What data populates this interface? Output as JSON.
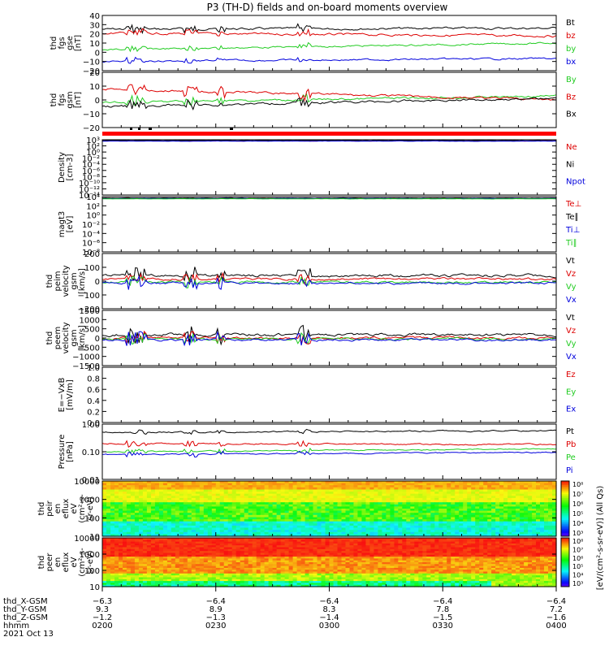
{
  "title": "P3 (TH-D) fields and on-board moments overview",
  "date_label": "2021 Oct 13",
  "colors": {
    "black": "#000000",
    "red": "#dd0000",
    "green": "#22cc22",
    "blue": "#0000dd"
  },
  "chart_data": [
    {
      "type": "line",
      "ylabel": [
        "thd",
        "fgs",
        "gse",
        "[nT]"
      ],
      "yticks": [
        "40",
        "30",
        "20",
        "10",
        "0",
        "−10",
        "−20"
      ],
      "ylim": [
        -20,
        40
      ],
      "series": [
        {
          "name": "Bt",
          "color": "#000000",
          "base": 24,
          "noise": 3
        },
        {
          "name": "bz",
          "color": "#dd0000",
          "base": 21,
          "noise": 3
        },
        {
          "name": "by",
          "color": "#22cc22",
          "base": 2,
          "noise": 2
        },
        {
          "name": "bx",
          "color": "#0000dd",
          "base": -10,
          "noise": 2
        }
      ]
    },
    {
      "type": "line",
      "ylabel": [
        "thd",
        "fgs",
        "gsm",
        "[nT]"
      ],
      "yticks": [
        "20",
        "10",
        "0",
        "−10",
        "−20"
      ],
      "ylim": [
        -25,
        25
      ],
      "series": [
        {
          "name": "By",
          "color": "#22cc22"
        },
        {
          "name": "Bz",
          "color": "#dd0000"
        },
        {
          "name": "Bx",
          "color": "#000000"
        }
      ]
    },
    {
      "type": "line",
      "ylabel": [
        "Density",
        "[cm-3]"
      ],
      "yticks": [
        "10³",
        "10²",
        "10⁰",
        "10⁻²",
        "10⁻⁴",
        "10⁻⁶",
        "10⁻⁸",
        "10⁻¹⁰",
        "10⁻¹²",
        "10⁻¹⁴"
      ],
      "log": true,
      "series": [
        {
          "name": "Ne",
          "color": "#dd0000"
        },
        {
          "name": "Ni",
          "color": "#000000"
        },
        {
          "name": "Npot",
          "color": "#0000dd"
        }
      ]
    },
    {
      "type": "line",
      "ylabel": [
        "magt3",
        "[eV]"
      ],
      "yticks": [
        "10⁴",
        "10²",
        "10⁰",
        "10⁻²",
        "10⁻⁴",
        "10⁻⁶",
        "10⁻⁸"
      ],
      "log": true,
      "series": [
        {
          "name": "Te⊥",
          "color": "#dd0000"
        },
        {
          "name": "Te∥",
          "color": "#000000"
        },
        {
          "name": "Ti⊥",
          "color": "#0000dd"
        },
        {
          "name": "Ti∥",
          "color": "#22cc22"
        }
      ]
    },
    {
      "type": "line",
      "ylabel": [
        "thd",
        "peim",
        "velocity",
        "gsm",
        "[km/s]"
      ],
      "yticks": [
        "200",
        "100",
        "0",
        "−100",
        "−200"
      ],
      "ylim": [
        -200,
        200
      ],
      "series": [
        {
          "name": "Vt",
          "color": "#000000"
        },
        {
          "name": "Vz",
          "color": "#dd0000"
        },
        {
          "name": "Vy",
          "color": "#22cc22"
        },
        {
          "name": "Vx",
          "color": "#0000dd"
        }
      ]
    },
    {
      "type": "line",
      "ylabel": [
        "thd",
        "peem",
        "velocity",
        "gsm",
        "[km/s]"
      ],
      "yticks": [
        "1500",
        "1000",
        "500",
        "0",
        "−500",
        "−1000",
        "−1500"
      ],
      "ylim": [
        -1500,
        1500
      ],
      "series": [
        {
          "name": "Vt",
          "color": "#000000"
        },
        {
          "name": "Vz",
          "color": "#dd0000"
        },
        {
          "name": "Vy",
          "color": "#22cc22"
        },
        {
          "name": "Vx",
          "color": "#0000dd"
        }
      ]
    },
    {
      "type": "line",
      "ylabel": [
        "E=−VxB",
        "[mV/m]"
      ],
      "yticks": [
        "1.0",
        "0.8",
        "0.6",
        "0.4",
        "0.2",
        "0.0"
      ],
      "ylim": [
        0,
        1
      ],
      "series": [
        {
          "name": "Ez",
          "color": "#dd0000"
        },
        {
          "name": "Ey",
          "color": "#22cc22"
        },
        {
          "name": "Ex",
          "color": "#0000dd"
        }
      ]
    },
    {
      "type": "line",
      "ylabel": [
        "Pressure",
        "[nPa]"
      ],
      "yticks": [
        "1.00",
        "0.10",
        "0.01"
      ],
      "log": true,
      "series": [
        {
          "name": "Pt",
          "color": "#000000"
        },
        {
          "name": "Pb",
          "color": "#dd0000"
        },
        {
          "name": "Pe",
          "color": "#22cc22"
        },
        {
          "name": "Pi",
          "color": "#0000dd"
        }
      ]
    },
    {
      "type": "heatmap",
      "ylabel": [
        "thd",
        "peir",
        "en",
        "eflux",
        "eV",
        "(cm²-s-",
        "sr-eV)"
      ],
      "yticks": [
        "10000",
        "1000",
        "100",
        "10"
      ],
      "colorbar_ticks": [
        "10⁸",
        "10⁷",
        "10⁶",
        "10⁵",
        "10⁴",
        "10³"
      ]
    },
    {
      "type": "heatmap",
      "ylabel": [
        "thd",
        "peer",
        "en",
        "eflux",
        "eV",
        "(cm²-s-",
        "sr-eV)"
      ],
      "yticks": [
        "10000",
        "1000",
        "100",
        "10"
      ],
      "colorbar_ticks": [
        "10⁸",
        "10⁷",
        "10⁶",
        "10⁵",
        "10⁴",
        "10³"
      ]
    }
  ],
  "colorbar_label": "[eV/(cm²-s-sr-eV)] (All Qs)",
  "xaxis": {
    "row_labels": [
      "thd_X-GSM",
      "thd_Y-GSM",
      "thd_Z-GSM",
      "hhmm"
    ],
    "columns": [
      [
        "−6.3",
        "9.3",
        "−1.2",
        "0200"
      ],
      [
        "−6.4",
        "8.9",
        "−1.3",
        "0230"
      ],
      [
        "−6.4",
        "8.3",
        "−1.4",
        "0300"
      ],
      [
        "−6.4",
        "7.8",
        "−1.5",
        "0330"
      ],
      [
        "−6.4",
        "7.2",
        "−1.6",
        "0400"
      ]
    ]
  }
}
